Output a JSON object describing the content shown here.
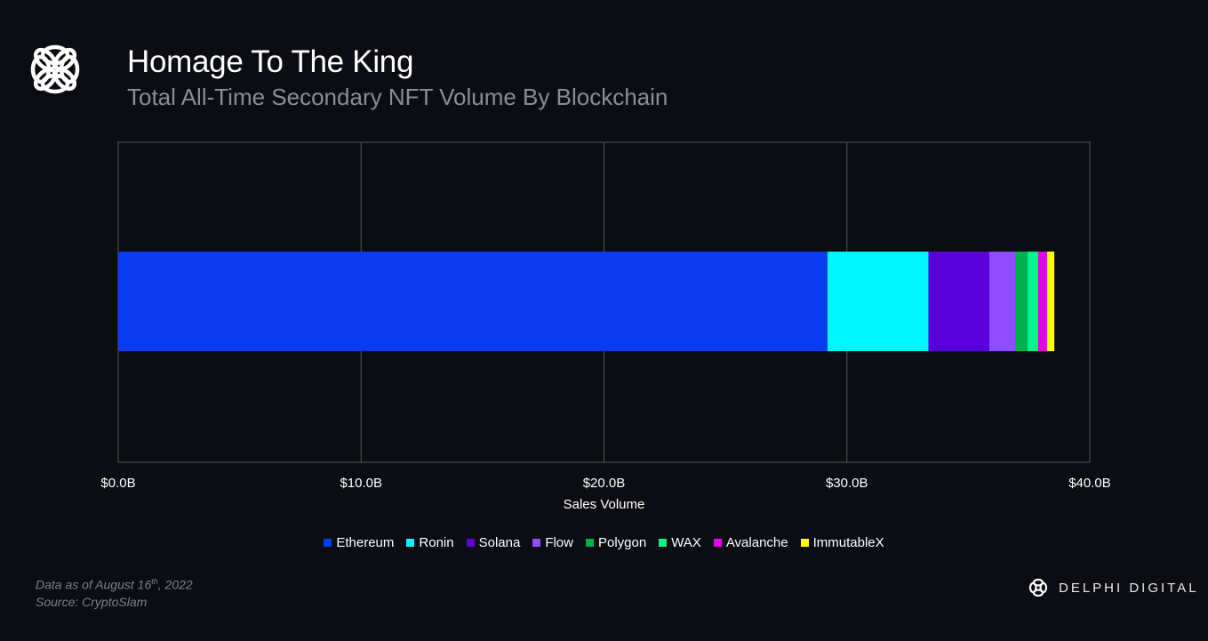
{
  "header": {
    "title": "Homage To The King",
    "subtitle": "Total All-Time Secondary NFT Volume By Blockchain"
  },
  "chart_data": {
    "type": "bar",
    "orientation": "horizontal",
    "stacked": true,
    "xlabel": "Sales Volume",
    "xlim": [
      0,
      40
    ],
    "xticks": [
      "$0.0B",
      "$10.0B",
      "$20.0B",
      "$30.0B",
      "$40.0B"
    ],
    "grid": true,
    "legend_position": "bottom",
    "unit": "USD billions",
    "series": [
      {
        "name": "Ethereum",
        "value": 29.2,
        "color": "#0a3cf0"
      },
      {
        "name": "Ronin",
        "value": 4.16,
        "color": "#00f5ff"
      },
      {
        "name": "Solana",
        "value": 2.5,
        "color": "#5b00db"
      },
      {
        "name": "Flow",
        "value": 1.1,
        "color": "#8f4dff"
      },
      {
        "name": "Polygon",
        "value": 0.48,
        "color": "#00b050"
      },
      {
        "name": "WAX",
        "value": 0.44,
        "color": "#00f58c"
      },
      {
        "name": "Avalanche",
        "value": 0.36,
        "color": "#e600f0"
      },
      {
        "name": "ImmutableX",
        "value": 0.3,
        "color": "#ffff00"
      }
    ]
  },
  "footer": {
    "date_prefix": "Data as of August 16",
    "date_sup": "th",
    "date_suffix": ", 2022",
    "source": "Source: CryptoSlam",
    "brand": "DELPHI DIGITAL"
  }
}
